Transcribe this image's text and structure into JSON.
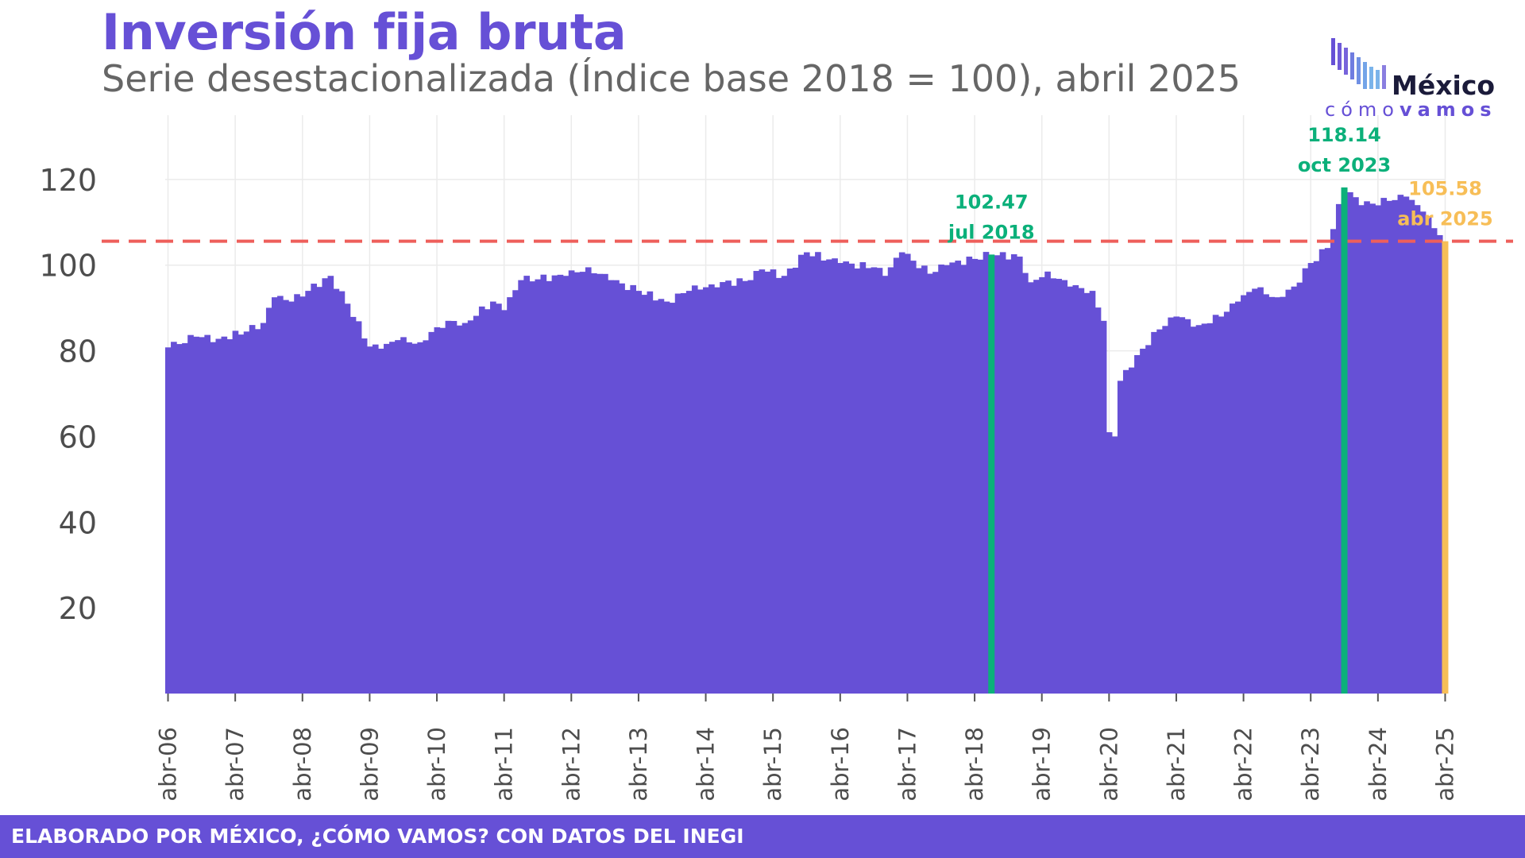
{
  "title": "Inversión fija bruta",
  "subtitle": "Serie desestacionalizada (Índice base 2018 = 100), abril 2025",
  "logo": {
    "word": "México",
    "sub_light": "cómo",
    "sub_strong": "vamos"
  },
  "footer": "ELABORADO POR MÉXICO, ¿CÓMO VAMOS? CON DATOS DEL INEGI",
  "colors": {
    "bar": "#6650D6",
    "accent_green": "#0BB07A",
    "accent_yellow": "#F7BE57",
    "reference_line": "#EE5F5B"
  },
  "chart_data": {
    "type": "bar",
    "title": "Inversión fija bruta",
    "subtitle": "Serie desestacionalizada (Índice base 2018 = 100), abril 2025",
    "x_start": "2006-04",
    "x_end": "2025-04",
    "frequency": "monthly",
    "ylim": [
      0,
      135
    ],
    "yticks": [
      20,
      40,
      60,
      80,
      100,
      120
    ],
    "xticks": [
      "abr-06",
      "abr-07",
      "abr-08",
      "abr-09",
      "abr-10",
      "abr-11",
      "abr-12",
      "abr-13",
      "abr-14",
      "abr-15",
      "abr-16",
      "abr-17",
      "abr-18",
      "abr-19",
      "abr-20",
      "abr-21",
      "abr-22",
      "abr-23",
      "abr-24",
      "abr-25"
    ],
    "grid": true,
    "reference_line": {
      "y": 105.58,
      "style": "dashed"
    },
    "anchors": [
      [
        "2006-04",
        80.8
      ],
      [
        "2006-09",
        83.3
      ],
      [
        "2007-01",
        82.8
      ],
      [
        "2007-06",
        84.5
      ],
      [
        "2007-09",
        86.5
      ],
      [
        "2007-11",
        92.5
      ],
      [
        "2008-02",
        91.5
      ],
      [
        "2008-05",
        94.0
      ],
      [
        "2008-09",
        97.5
      ],
      [
        "2008-12",
        91.0
      ],
      [
        "2009-04",
        81.0
      ],
      [
        "2009-06",
        80.5
      ],
      [
        "2009-09",
        82.5
      ],
      [
        "2010-01",
        82.0
      ],
      [
        "2010-04",
        85.5
      ],
      [
        "2010-06",
        87.0
      ],
      [
        "2010-09",
        86.5
      ],
      [
        "2011-02",
        91.5
      ],
      [
        "2011-04",
        89.5
      ],
      [
        "2011-07",
        96.5
      ],
      [
        "2012-03",
        97.5
      ],
      [
        "2012-07",
        99.5
      ],
      [
        "2012-11",
        96.5
      ],
      [
        "2013-04",
        94.0
      ],
      [
        "2013-09",
        91.5
      ],
      [
        "2014-01",
        94.0
      ],
      [
        "2014-05",
        95.5
      ],
      [
        "2014-12",
        96.5
      ],
      [
        "2015-02",
        99.0
      ],
      [
        "2015-06",
        97.5
      ],
      [
        "2015-10",
        103.0
      ],
      [
        "2016-04",
        100.5
      ],
      [
        "2016-10",
        99.5
      ],
      [
        "2016-12",
        97.5
      ],
      [
        "2017-03",
        103.0
      ],
      [
        "2017-08",
        98.0
      ],
      [
        "2017-11",
        100.0
      ],
      [
        "2018-07",
        102.5
      ],
      [
        "2018-12",
        102.0
      ],
      [
        "2019-02",
        96.0
      ],
      [
        "2019-05",
        98.5
      ],
      [
        "2019-09",
        95.0
      ],
      [
        "2020-01",
        94.0
      ],
      [
        "2020-03",
        87.0
      ],
      [
        "2020-04",
        61.0
      ],
      [
        "2020-05",
        60.0
      ],
      [
        "2020-06",
        73.0
      ],
      [
        "2020-09",
        79.0
      ],
      [
        "2021-01",
        85.0
      ],
      [
        "2021-04",
        88.0
      ],
      [
        "2021-08",
        86.0
      ],
      [
        "2021-12",
        88.0
      ],
      [
        "2022-03",
        91.5
      ],
      [
        "2022-06",
        94.5
      ],
      [
        "2022-10",
        92.5
      ],
      [
        "2023-01",
        95.0
      ],
      [
        "2023-04",
        100.5
      ],
      [
        "2023-07",
        104.0
      ],
      [
        "2023-10",
        118.14
      ],
      [
        "2024-01",
        114.0
      ],
      [
        "2024-06",
        115.0
      ],
      [
        "2024-09",
        116.0
      ],
      [
        "2024-12",
        112.5
      ],
      [
        "2025-03",
        107.0
      ],
      [
        "2025-04",
        105.58
      ]
    ],
    "highlights": [
      {
        "date": "2018-07",
        "value": 102.47,
        "label_value": "102.47",
        "label_date": "jul 2018",
        "color": "accent_green"
      },
      {
        "date": "2023-10",
        "value": 118.14,
        "label_value": "118.14",
        "label_date": "oct 2023",
        "color": "accent_green"
      },
      {
        "date": "2025-04",
        "value": 105.58,
        "label_value": "105.58",
        "label_date": "abr 2025",
        "color": "accent_yellow"
      }
    ]
  }
}
